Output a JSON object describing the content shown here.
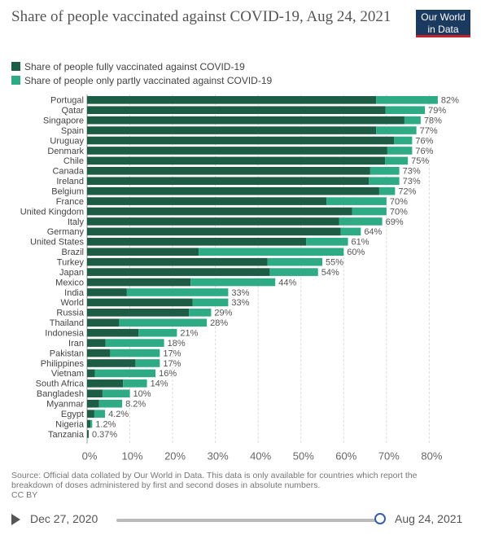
{
  "header": {
    "title": "Share of people vaccinated against COVID-19, Aug 24, 2021",
    "logo_line1": "Our World",
    "logo_line2": "in Data"
  },
  "colors": {
    "full": "#1d5c45",
    "partial": "#2eaa85",
    "logo_bg": "#1b3a5f",
    "logo_accent": "#c8202e"
  },
  "chart_data": {
    "type": "bar",
    "orientation": "horizontal",
    "stacked": true,
    "title": "Share of people vaccinated against COVID-19, Aug 24, 2021",
    "categories": [
      "Portugal",
      "Qatar",
      "Singapore",
      "Spain",
      "Uruguay",
      "Denmark",
      "Chile",
      "Canada",
      "Ireland",
      "Belgium",
      "France",
      "United Kingdom",
      "Italy",
      "Germany",
      "United States",
      "Brazil",
      "Turkey",
      "Japan",
      "Mexico",
      "India",
      "World",
      "Russia",
      "Thailand",
      "Indonesia",
      "Iran",
      "Pakistan",
      "Philippines",
      "Vietnam",
      "South Africa",
      "Bangladesh",
      "Myanmar",
      "Egypt",
      "Nigeria",
      "Tanzania"
    ],
    "series": [
      {
        "name": "Share of people fully vaccinated against COVID-19",
        "values": [
          67.6,
          69.8,
          74.2,
          67.6,
          71.8,
          70.2,
          69.7,
          66.2,
          65.9,
          68.3,
          56.0,
          62.0,
          58.9,
          59.3,
          51.2,
          26.1,
          42.2,
          42.7,
          24.2,
          9.3,
          24.7,
          23.8,
          7.5,
          12.0,
          4.3,
          5.4,
          11.3,
          1.8,
          8.4,
          3.6,
          2.8,
          1.7,
          0.8,
          0.37
        ]
      },
      {
        "name": "Share of people only partly vaccinated against COVID-19",
        "values": [
          14.4,
          9.2,
          3.8,
          9.4,
          4.2,
          5.8,
          5.3,
          6.8,
          7.1,
          3.7,
          14.0,
          8.0,
          10.1,
          4.7,
          9.8,
          33.9,
          12.8,
          11.3,
          19.8,
          23.7,
          8.3,
          5.2,
          20.5,
          9.0,
          13.7,
          11.6,
          5.7,
          14.2,
          5.6,
          6.4,
          5.4,
          2.5,
          0.4,
          0.0
        ]
      }
    ],
    "data_labels": [
      "82%",
      "79%",
      "78%",
      "77%",
      "76%",
      "76%",
      "75%",
      "73%",
      "73%",
      "72%",
      "70%",
      "70%",
      "69%",
      "64%",
      "61%",
      "60%",
      "55%",
      "54%",
      "44%",
      "33%",
      "33%",
      "29%",
      "28%",
      "21%",
      "18%",
      "17%",
      "17%",
      "16%",
      "14%",
      "10%",
      "8.2%",
      "4.2%",
      "1.2%",
      "0.37%"
    ],
    "xlim": [
      0,
      80
    ],
    "xticks": [
      "0%",
      "10%",
      "20%",
      "30%",
      "40%",
      "50%",
      "60%",
      "70%",
      "80%"
    ],
    "grid": true,
    "legend_position": "top-left"
  },
  "footer": {
    "source_line1": "Source: Official data collated by Our World in Data. This data is only available for countries which report the",
    "source_line2": "breakdown of doses administered by first and second doses in absolute numbers.",
    "license": "CC BY"
  },
  "timeline": {
    "start": "Dec 27, 2020",
    "end": "Aug 24, 2021"
  }
}
